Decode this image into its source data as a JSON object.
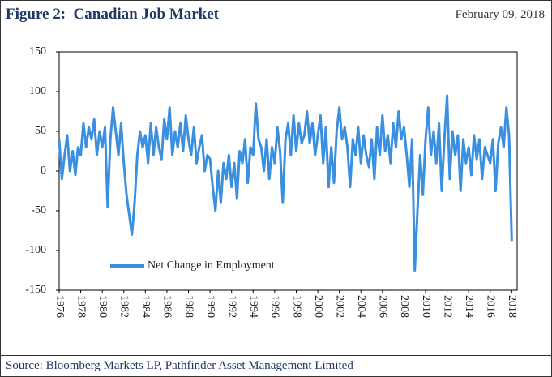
{
  "header": {
    "title": "Figure 2:  Canadian Job Market",
    "date": "February 09, 2018"
  },
  "footer": {
    "source": "Source: Bloomberg Markets LP, Pathfinder Asset Management Limited"
  },
  "chart_data": {
    "type": "line",
    "x": [
      1976,
      1976.25,
      1976.5,
      1976.75,
      1977,
      1977.25,
      1977.5,
      1977.75,
      1978,
      1978.25,
      1978.5,
      1978.75,
      1979,
      1979.25,
      1979.5,
      1979.75,
      1980,
      1980.25,
      1980.5,
      1980.75,
      1981,
      1981.25,
      1981.5,
      1981.75,
      1982,
      1982.25,
      1982.5,
      1982.75,
      1983,
      1983.25,
      1983.5,
      1983.75,
      1984,
      1984.25,
      1984.5,
      1984.75,
      1985,
      1985.25,
      1985.5,
      1985.75,
      1986,
      1986.25,
      1986.5,
      1986.75,
      1987,
      1987.25,
      1987.5,
      1987.75,
      1988,
      1988.25,
      1988.5,
      1988.75,
      1989,
      1989.25,
      1989.5,
      1989.75,
      1990,
      1990.25,
      1990.5,
      1990.75,
      1991,
      1991.25,
      1991.5,
      1991.75,
      1992,
      1992.25,
      1992.5,
      1992.75,
      1993,
      1993.25,
      1993.5,
      1993.75,
      1994,
      1994.25,
      1994.5,
      1994.75,
      1995,
      1995.25,
      1995.5,
      1995.75,
      1996,
      1996.25,
      1996.5,
      1996.75,
      1997,
      1997.25,
      1997.5,
      1997.75,
      1998,
      1998.25,
      1998.5,
      1998.75,
      1999,
      1999.25,
      1999.5,
      1999.75,
      2000,
      2000.25,
      2000.5,
      2000.75,
      2001,
      2001.25,
      2001.5,
      2001.75,
      2002,
      2002.25,
      2002.5,
      2002.75,
      2003,
      2003.25,
      2003.5,
      2003.75,
      2004,
      2004.25,
      2004.5,
      2004.75,
      2005,
      2005.25,
      2005.5,
      2005.75,
      2006,
      2006.25,
      2006.5,
      2006.75,
      2007,
      2007.25,
      2007.5,
      2007.75,
      2008,
      2008.25,
      2008.5,
      2008.75,
      2009,
      2009.25,
      2009.5,
      2009.75,
      2010,
      2010.25,
      2010.5,
      2010.75,
      2011,
      2011.25,
      2011.5,
      2011.75,
      2012,
      2012.25,
      2012.5,
      2012.75,
      2013,
      2013.25,
      2013.5,
      2013.75,
      2014,
      2014.25,
      2014.5,
      2014.75,
      2015,
      2015.25,
      2015.5,
      2015.75,
      2016,
      2016.25,
      2016.5,
      2016.75,
      2017,
      2017.25,
      2017.5,
      2017.75,
      2018
    ],
    "series": [
      {
        "name": "Net Change in Employment",
        "color": "#3a8fdf",
        "values": [
          40,
          -10,
          20,
          45,
          0,
          25,
          -5,
          30,
          20,
          60,
          30,
          55,
          40,
          65,
          20,
          50,
          30,
          55,
          -45,
          40,
          80,
          50,
          20,
          60,
          10,
          -30,
          -55,
          -80,
          -40,
          20,
          50,
          30,
          45,
          10,
          60,
          20,
          55,
          30,
          15,
          65,
          40,
          80,
          20,
          50,
          30,
          60,
          25,
          70,
          40,
          20,
          55,
          10,
          30,
          45,
          0,
          20,
          15,
          -20,
          -50,
          0,
          -40,
          10,
          -10,
          20,
          -20,
          10,
          -35,
          25,
          10,
          40,
          -15,
          30,
          20,
          85,
          40,
          30,
          0,
          40,
          -10,
          30,
          10,
          55,
          25,
          -40,
          40,
          60,
          20,
          70,
          25,
          60,
          35,
          45,
          75,
          35,
          60,
          20,
          45,
          70,
          10,
          55,
          -20,
          30,
          -15,
          50,
          80,
          40,
          55,
          30,
          -20,
          40,
          20,
          55,
          10,
          45,
          20,
          5,
          40,
          -10,
          55,
          20,
          70,
          25,
          45,
          10,
          60,
          30,
          75,
          40,
          55,
          20,
          -20,
          40,
          -125,
          -50,
          20,
          -30,
          40,
          80,
          20,
          50,
          10,
          60,
          -25,
          40,
          95,
          -10,
          50,
          20,
          45,
          -25,
          40,
          10,
          30,
          -5,
          45,
          15,
          40,
          -10,
          30,
          20,
          10,
          40,
          -25,
          35,
          55,
          30,
          80,
          45,
          -88
        ]
      }
    ],
    "xlim": [
      1976,
      2018.5
    ],
    "xticks": [
      1976,
      1978,
      1980,
      1982,
      1984,
      1986,
      1988,
      1990,
      1992,
      1994,
      1996,
      1998,
      2000,
      2002,
      2004,
      2006,
      2008,
      2010,
      2012,
      2014,
      2016,
      2018
    ],
    "ylim": [
      -150,
      150
    ],
    "yticks": [
      -150,
      -100,
      -50,
      0,
      50,
      100,
      150
    ],
    "legend": "lower-left"
  }
}
